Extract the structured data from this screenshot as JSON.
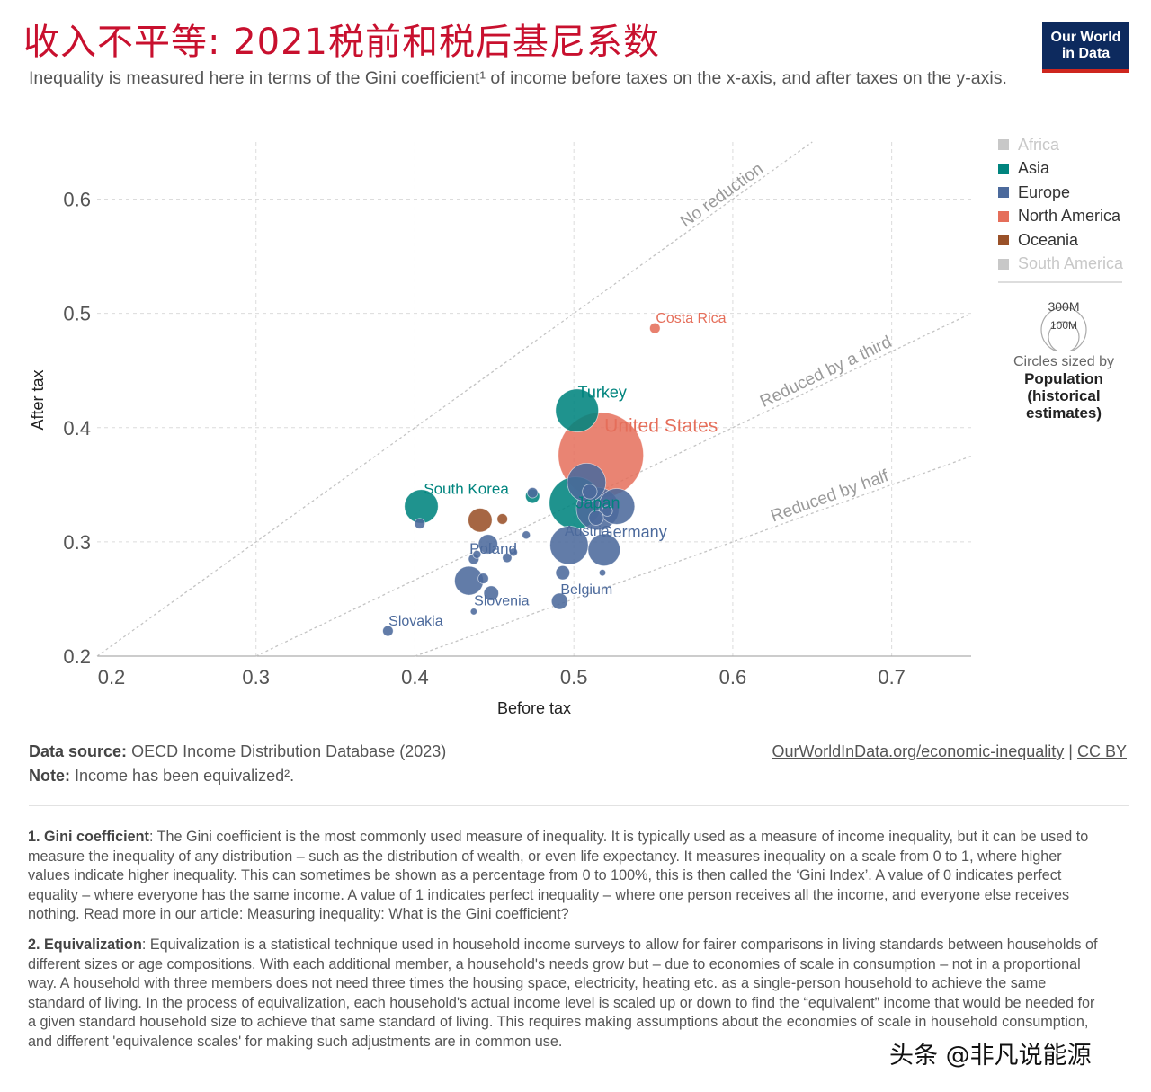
{
  "header": {
    "title": "收入不平等: 2021税前和税后基尼系数",
    "subtitle": "Inequality is measured here in terms of the Gini coefficient¹ of income before taxes on the x-axis, and after taxes on the y-axis.",
    "logo_line1": "Our World",
    "logo_line2": "in Data"
  },
  "legend": {
    "items": [
      {
        "label": "Africa",
        "color": "#c8c8c8",
        "active": false
      },
      {
        "label": "Asia",
        "color": "#00847e",
        "active": true
      },
      {
        "label": "Europe",
        "color": "#4c6a9c",
        "active": true
      },
      {
        "label": "North America",
        "color": "#e56e5a",
        "active": true
      },
      {
        "label": "Oceania",
        "color": "#9a5129",
        "active": true
      },
      {
        "label": "South America",
        "color": "#c8c8c8",
        "active": false
      }
    ],
    "size_large": "300M",
    "size_small": "100M",
    "size_caption": "Circles sized by",
    "size_metric": "Population (historical estimates)"
  },
  "chart_data": {
    "type": "scatter",
    "xlabel": "Before tax",
    "ylabel": "After tax",
    "xlim": [
      0.2,
      0.75
    ],
    "ylim": [
      0.2,
      0.65
    ],
    "xticks": [
      "0.2",
      "0.3",
      "0.4",
      "0.5",
      "0.6",
      "0.7"
    ],
    "yticks": [
      "0.2",
      "0.3",
      "0.4",
      "0.5",
      "0.6"
    ],
    "grid": true,
    "reference_lines": [
      {
        "label": "No reduction",
        "ratio": 1.0
      },
      {
        "label": "Reduced by a third",
        "ratio": 0.6667
      },
      {
        "label": "Reduced by half",
        "ratio": 0.5
      }
    ],
    "points": [
      {
        "label": "United States",
        "region": "North America",
        "x": 0.517,
        "y": 0.376,
        "pop_m": 332
      },
      {
        "label": "Costa Rica",
        "region": "North America",
        "x": 0.551,
        "y": 0.487,
        "pop_m": 5
      },
      {
        "label": "Turkey",
        "region": "Asia",
        "x": 0.502,
        "y": 0.415,
        "pop_m": 84
      },
      {
        "label": "Japan",
        "region": "Asia",
        "x": 0.501,
        "y": 0.334,
        "pop_m": 125
      },
      {
        "label": "South Korea",
        "region": "Asia",
        "x": 0.404,
        "y": 0.331,
        "pop_m": 52
      },
      {
        "label": "",
        "region": "Asia",
        "x": 0.474,
        "y": 0.34,
        "pop_m": 9
      },
      {
        "label": "",
        "region": "Oceania",
        "x": 0.441,
        "y": 0.319,
        "pop_m": 26
      },
      {
        "label": "",
        "region": "Oceania",
        "x": 0.455,
        "y": 0.32,
        "pop_m": 5
      },
      {
        "label": "Germany",
        "region": "Europe",
        "x": 0.515,
        "y": 0.329,
        "pop_m": 83
      },
      {
        "label": "",
        "region": "Europe",
        "x": 0.508,
        "y": 0.352,
        "pop_m": 68
      },
      {
        "label": "",
        "region": "Europe",
        "x": 0.527,
        "y": 0.331,
        "pop_m": 59
      },
      {
        "label": "",
        "region": "Europe",
        "x": 0.51,
        "y": 0.344,
        "pop_m": 10
      },
      {
        "label": "",
        "region": "Europe",
        "x": 0.514,
        "y": 0.321,
        "pop_m": 10
      },
      {
        "label": "",
        "region": "Europe",
        "x": 0.521,
        "y": 0.327,
        "pop_m": 5
      },
      {
        "label": "",
        "region": "Europe",
        "x": 0.474,
        "y": 0.343,
        "pop_m": 5
      },
      {
        "label": "",
        "region": "Europe",
        "x": 0.497,
        "y": 0.297,
        "pop_m": 67
      },
      {
        "label": "",
        "region": "Europe",
        "x": 0.519,
        "y": 0.293,
        "pop_m": 47
      },
      {
        "label": "",
        "region": "Europe",
        "x": 0.446,
        "y": 0.298,
        "pop_m": 17
      },
      {
        "label": "",
        "region": "Europe",
        "x": 0.403,
        "y": 0.316,
        "pop_m": 5
      },
      {
        "label": "",
        "region": "Europe",
        "x": 0.47,
        "y": 0.306,
        "pop_m": 3
      },
      {
        "label": "",
        "region": "Europe",
        "x": 0.462,
        "y": 0.291,
        "pop_m": 3
      },
      {
        "label": "",
        "region": "Europe",
        "x": 0.458,
        "y": 0.286,
        "pop_m": 4
      },
      {
        "label": "",
        "region": "Europe",
        "x": 0.439,
        "y": 0.289,
        "pop_m": 3
      },
      {
        "label": "",
        "region": "Europe",
        "x": 0.437,
        "y": 0.285,
        "pop_m": 5
      },
      {
        "label": "Austria",
        "region": "Europe",
        "x": 0.493,
        "y": 0.273,
        "pop_m": 9
      },
      {
        "label": "",
        "region": "Europe",
        "x": 0.518,
        "y": 0.273,
        "pop_m": 2
      },
      {
        "label": "",
        "region": "Europe",
        "x": 0.443,
        "y": 0.268,
        "pop_m": 5
      },
      {
        "label": "Poland",
        "region": "Europe",
        "x": 0.434,
        "y": 0.266,
        "pop_m": 38
      },
      {
        "label": "",
        "region": "Europe",
        "x": 0.448,
        "y": 0.255,
        "pop_m": 10
      },
      {
        "label": "Belgium",
        "region": "Europe",
        "x": 0.491,
        "y": 0.248,
        "pop_m": 12
      },
      {
        "label": "Slovenia",
        "region": "Europe",
        "x": 0.437,
        "y": 0.239,
        "pop_m": 2
      },
      {
        "label": "Slovakia",
        "region": "Europe",
        "x": 0.383,
        "y": 0.222,
        "pop_m": 5
      }
    ]
  },
  "footer": {
    "source_label": "Data source:",
    "source_value": "OECD Income Distribution Database (2023)",
    "note_label": "Note:",
    "note_value": "Income has been equivalized².",
    "link": "OurWorldInData.org/economic-inequality",
    "separator": "|",
    "license": "CC BY"
  },
  "footnotes": [
    {
      "label": "1. Gini coefficient",
      "text": ": The Gini coefficient is the most commonly used measure of inequality. It is typically used as a measure of income inequality, but it can be used to measure the inequality of any distribution – such as the distribution of wealth, or even life expectancy. It measures inequality on a scale from 0 to 1, where higher values indicate higher inequality. This can sometimes be shown as a percentage from 0 to 100%, this is then called the ‘Gini Index’. A value of 0 indicates perfect equality – where everyone has the same income. A value of 1 indicates perfect inequality – where one person receives all the income, and everyone else receives nothing. Read more in our article: Measuring inequality: What is the Gini coefficient?"
    },
    {
      "label": "2. Equivalization",
      "text": ": Equivalization is a statistical technique used in household income surveys to allow for fairer comparisons in living standards between households of different sizes or age compositions. With each additional member, a household's needs grow but – due to economies of scale in consumption – not in a proportional way. A household with three members does not need three times the housing space, electricity, heating etc. as a single-person household to achieve the same standard of living. In the process of equivalization, each household's actual income level is scaled up or down to find the “equivalent” income that would be needed for a given standard household size to achieve that same standard of living. This requires making assumptions about the economies of scale in household consumption, and different 'equivalence scales' for making such adjustments are in common use."
    }
  ],
  "watermark": "头条 @非凡说能源"
}
